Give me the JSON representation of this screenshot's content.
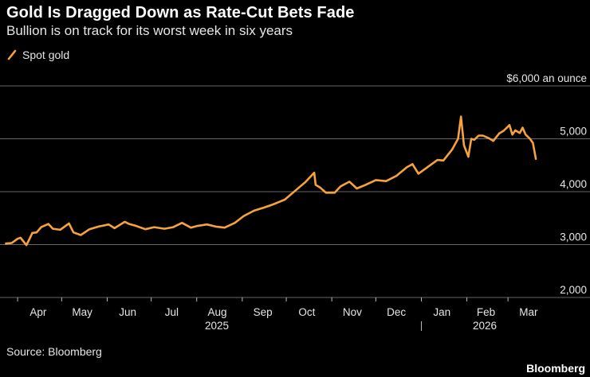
{
  "header": {
    "title": "Gold Is Dragged Down as Rate-Cut Bets Fade",
    "subtitle": "Bullion is on track for its worst week in six years"
  },
  "legend": {
    "label": "Spot gold",
    "icon": "diagonal-line-icon"
  },
  "footer": {
    "source": "Source: Bloomberg",
    "brand": "Bloomberg"
  },
  "colors": {
    "background": "#000000",
    "line": "#F7A33B",
    "grid": "#666666",
    "text": "#E6E6E6"
  },
  "chart_data": {
    "type": "line",
    "title": "Gold Is Dragged Down as Rate-Cut Bets Fade",
    "subtitle": "Bullion is on track for its worst week in six years",
    "xlabel": "",
    "ylabel": "",
    "y_unit_label": "$6,000 an ounce",
    "ylim": [
      2000,
      6000
    ],
    "y_ticks": [
      2000,
      3000,
      4000,
      5000,
      6000
    ],
    "y_tick_labels": [
      "2,000",
      "3,000",
      "4,000",
      "5,000",
      "$6,000 an ounce"
    ],
    "x_ticks": [
      "Apr",
      "May",
      "Jun",
      "Jul",
      "Aug",
      "Sep",
      "Oct",
      "Nov",
      "Dec",
      "Jan",
      "Feb",
      "Mar"
    ],
    "x_year_labels": [
      "2025",
      "2026"
    ],
    "grid": true,
    "legend_position": "top-left",
    "series": [
      {
        "name": "Spot gold",
        "color": "#F7A33B",
        "x": [
          "2025-03-24",
          "2025-03-28",
          "2025-04-01",
          "2025-04-03",
          "2025-04-07",
          "2025-04-09",
          "2025-04-11",
          "2025-04-14",
          "2025-04-17",
          "2025-04-22",
          "2025-04-25",
          "2025-04-30",
          "2025-05-06",
          "2025-05-09",
          "2025-05-14",
          "2025-05-20",
          "2025-05-26",
          "2025-06-02",
          "2025-06-06",
          "2025-06-13",
          "2025-06-16",
          "2025-06-20",
          "2025-06-27",
          "2025-07-03",
          "2025-07-10",
          "2025-07-16",
          "2025-07-22",
          "2025-07-28",
          "2025-08-01",
          "2025-08-08",
          "2025-08-14",
          "2025-08-20",
          "2025-08-27",
          "2025-09-02",
          "2025-09-09",
          "2025-09-16",
          "2025-09-22",
          "2025-09-30",
          "2025-10-08",
          "2025-10-14",
          "2025-10-20",
          "2025-10-21",
          "2025-10-24",
          "2025-10-28",
          "2025-11-03",
          "2025-11-07",
          "2025-11-13",
          "2025-11-18",
          "2025-11-24",
          "2025-12-01",
          "2025-12-08",
          "2025-12-15",
          "2025-12-22",
          "2025-12-26",
          "2025-12-30",
          "2026-01-05",
          "2026-01-12",
          "2026-01-16",
          "2026-01-22",
          "2026-01-26",
          "2026-01-28",
          "2026-01-30",
          "2026-02-02",
          "2026-02-04",
          "2026-02-06",
          "2026-02-09",
          "2026-02-12",
          "2026-02-16",
          "2026-02-19",
          "2026-02-23",
          "2026-02-26",
          "2026-03-02",
          "2026-03-04",
          "2026-03-06",
          "2026-03-09",
          "2026-03-11",
          "2026-03-13",
          "2026-03-16",
          "2026-03-18",
          "2026-03-20"
        ],
        "values": [
          3020,
          3030,
          3110,
          3130,
          2990,
          3100,
          3220,
          3230,
          3330,
          3390,
          3300,
          3280,
          3400,
          3230,
          3180,
          3290,
          3340,
          3380,
          3310,
          3430,
          3390,
          3360,
          3290,
          3330,
          3300,
          3330,
          3410,
          3320,
          3350,
          3380,
          3340,
          3320,
          3410,
          3540,
          3640,
          3700,
          3760,
          3850,
          4040,
          4180,
          4360,
          4130,
          4080,
          3980,
          3980,
          4100,
          4190,
          4060,
          4130,
          4220,
          4200,
          4300,
          4460,
          4520,
          4340,
          4460,
          4600,
          4590,
          4800,
          5000,
          5420,
          4880,
          4660,
          5000,
          4980,
          5060,
          5060,
          5010,
          4960,
          5100,
          5150,
          5260,
          5080,
          5160,
          5110,
          5210,
          5080,
          5000,
          4920,
          4620
        ]
      }
    ]
  }
}
